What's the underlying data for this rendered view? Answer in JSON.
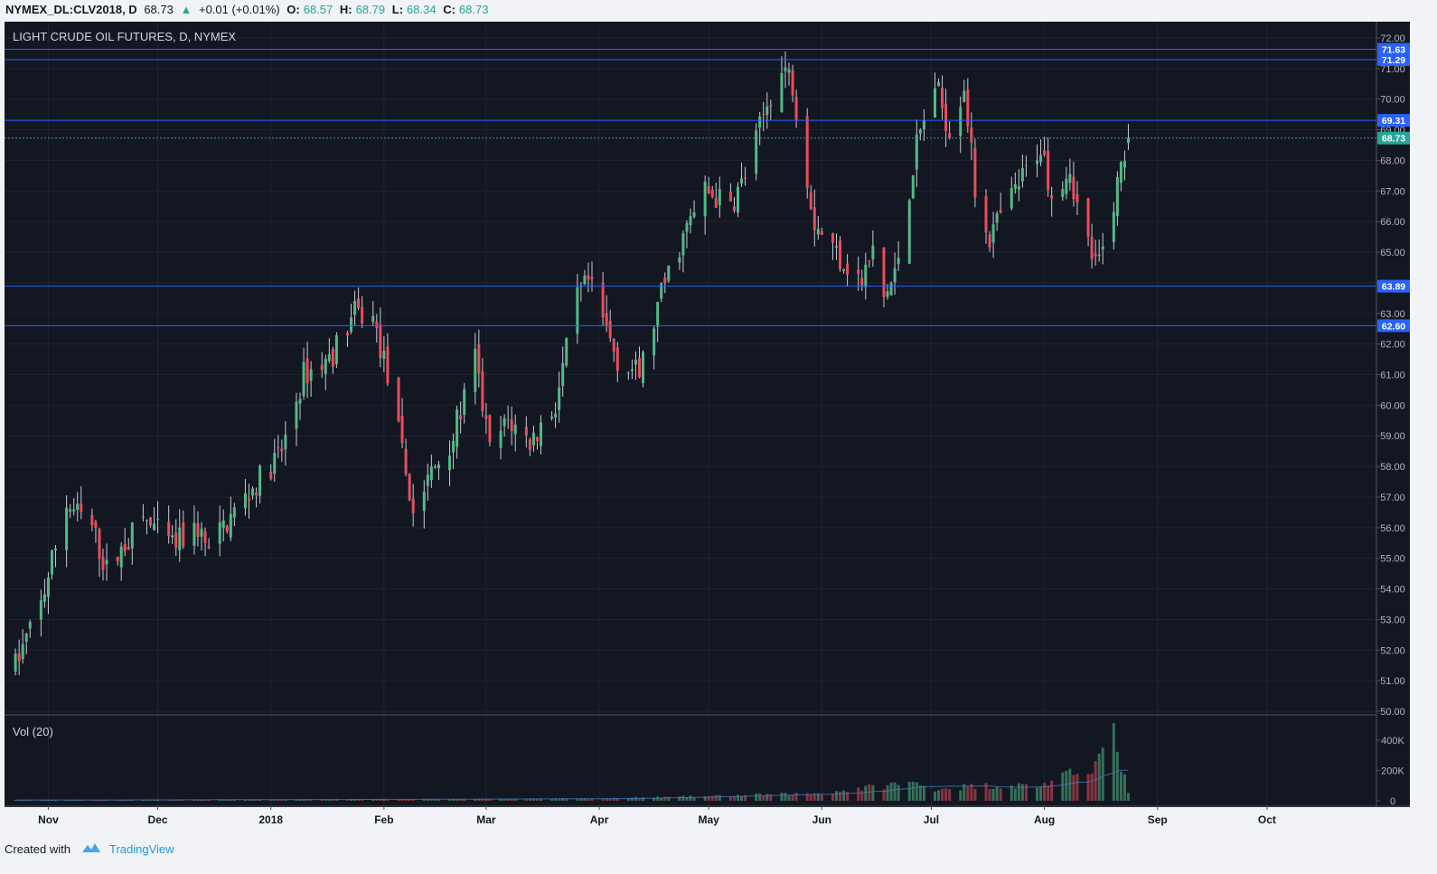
{
  "header": {
    "symbol": "NYMEX_DL:CLV2018, D",
    "last": "68.73",
    "change_arrow": "▲",
    "change": "+0.01 (+0.01%)",
    "o_label": "O:",
    "o_val": "68.57",
    "h_label": "H:",
    "h_val": "68.79",
    "l_label": "L:",
    "l_val": "68.34",
    "c_label": "C:",
    "c_val": "68.73"
  },
  "footer": {
    "created_with": "Created with",
    "brand": "TradingView"
  },
  "colors": {
    "up": "#26a69a",
    "candle_up": "#53b987",
    "candle_down": "#eb4d5c",
    "background": "#131722",
    "hline": "#2962ff",
    "price_tag": "#26a69a"
  },
  "chart_data": {
    "type": "candlestick",
    "title": "LIGHT CRUDE OIL FUTURES, D, NYMEX",
    "volume_label": "Vol (20)",
    "ylim": [
      50,
      72
    ],
    "y_ticks": [
      "50.00",
      "51.00",
      "52.00",
      "53.00",
      "54.00",
      "55.00",
      "56.00",
      "57.00",
      "58.00",
      "59.00",
      "60.00",
      "61.00",
      "62.00",
      "63.00",
      "64.00",
      "65.00",
      "66.00",
      "67.00",
      "68.00",
      "69.00",
      "70.00",
      "71.00",
      "72.00"
    ],
    "x_ticks": [
      "Nov",
      "Dec",
      "2018",
      "Feb",
      "Mar",
      "Apr",
      "May",
      "Jun",
      "Jul",
      "Aug",
      "Sep",
      "Oct"
    ],
    "x_tick_dates": [
      "2017-11-01",
      "2017-12-01",
      "2018-01-01",
      "2018-02-01",
      "2018-03-01",
      "2018-04-01",
      "2018-05-01",
      "2018-06-01",
      "2018-07-01",
      "2018-08-01",
      "2018-09-01",
      "2018-10-01"
    ],
    "x_range": [
      "2017-10-20",
      "2018-10-31"
    ],
    "horizontal_levels": [
      "71.63",
      "71.29",
      "69.31",
      "63.89",
      "62.60"
    ],
    "last_price": "68.73",
    "volume_ticks": [
      "0",
      "200K",
      "400K"
    ],
    "volume_max": 500000,
    "price_path": [
      [
        "2017-10-23",
        51.5
      ],
      [
        "2017-10-30",
        53.5
      ],
      [
        "2017-11-06",
        56.8
      ],
      [
        "2017-11-13",
        56.0
      ],
      [
        "2017-11-17",
        54.6
      ],
      [
        "2017-11-27",
        56.3
      ],
      [
        "2017-12-05",
        55.4
      ],
      [
        "2017-12-12",
        56.0
      ],
      [
        "2017-12-15",
        55.2
      ],
      [
        "2017-12-20",
        56.2
      ],
      [
        "2018-01-04",
        58.5
      ],
      [
        "2018-01-10",
        61.0
      ],
      [
        "2018-01-17",
        61.5
      ],
      [
        "2018-01-24",
        63.0
      ],
      [
        "2018-01-29",
        62.8
      ],
      [
        "2018-02-02",
        61.0
      ],
      [
        "2018-02-09",
        56.5
      ],
      [
        "2018-02-14",
        57.8
      ],
      [
        "2018-02-20",
        59.0
      ],
      [
        "2018-02-26",
        61.5
      ],
      [
        "2018-03-02",
        58.5
      ],
      [
        "2018-03-07",
        59.5
      ],
      [
        "2018-03-13",
        58.8
      ],
      [
        "2018-03-20",
        60.0
      ],
      [
        "2018-03-26",
        63.5
      ],
      [
        "2018-03-29",
        64.0
      ],
      [
        "2018-04-06",
        61.5
      ],
      [
        "2018-04-12",
        61.0
      ],
      [
        "2018-04-19",
        64.0
      ],
      [
        "2018-04-24",
        65.5
      ],
      [
        "2018-04-30",
        67.0
      ],
      [
        "2018-05-07",
        66.5
      ],
      [
        "2018-05-11",
        67.5
      ],
      [
        "2018-05-18",
        70.2
      ],
      [
        "2018-05-22",
        71.0
      ],
      [
        "2018-05-24",
        70.5
      ],
      [
        "2018-05-30",
        66.0
      ],
      [
        "2018-06-05",
        65.0
      ],
      [
        "2018-06-12",
        64.0
      ],
      [
        "2018-06-15",
        65.0
      ],
      [
        "2018-06-18",
        63.5
      ],
      [
        "2018-06-21",
        64.2
      ],
      [
        "2018-06-27",
        68.5
      ],
      [
        "2018-07-02",
        70.5
      ],
      [
        "2018-07-06",
        69.0
      ],
      [
        "2018-07-10",
        70.5
      ],
      [
        "2018-07-13",
        67.0
      ],
      [
        "2018-07-17",
        65.5
      ],
      [
        "2018-07-24",
        67.0
      ],
      [
        "2018-07-31",
        68.5
      ],
      [
        "2018-08-03",
        67.0
      ],
      [
        "2018-08-08",
        67.8
      ],
      [
        "2018-08-10",
        66.5
      ],
      [
        "2018-08-15",
        64.5
      ],
      [
        "2018-08-17",
        65.0
      ],
      [
        "2018-08-22",
        67.8
      ],
      [
        "2018-08-24",
        68.73
      ]
    ],
    "volume_path": [
      [
        "2017-10-23",
        5000
      ],
      [
        "2018-01-01",
        8000
      ],
      [
        "2018-04-01",
        15000
      ],
      [
        "2018-05-01",
        30000
      ],
      [
        "2018-06-01",
        50000
      ],
      [
        "2018-06-25",
        120000
      ],
      [
        "2018-07-02",
        80000
      ],
      [
        "2018-07-16",
        100000
      ],
      [
        "2018-07-31",
        100000
      ],
      [
        "2018-08-08",
        170000
      ],
      [
        "2018-08-15",
        250000
      ],
      [
        "2018-08-20",
        420000
      ],
      [
        "2018-08-24",
        60000
      ]
    ]
  }
}
